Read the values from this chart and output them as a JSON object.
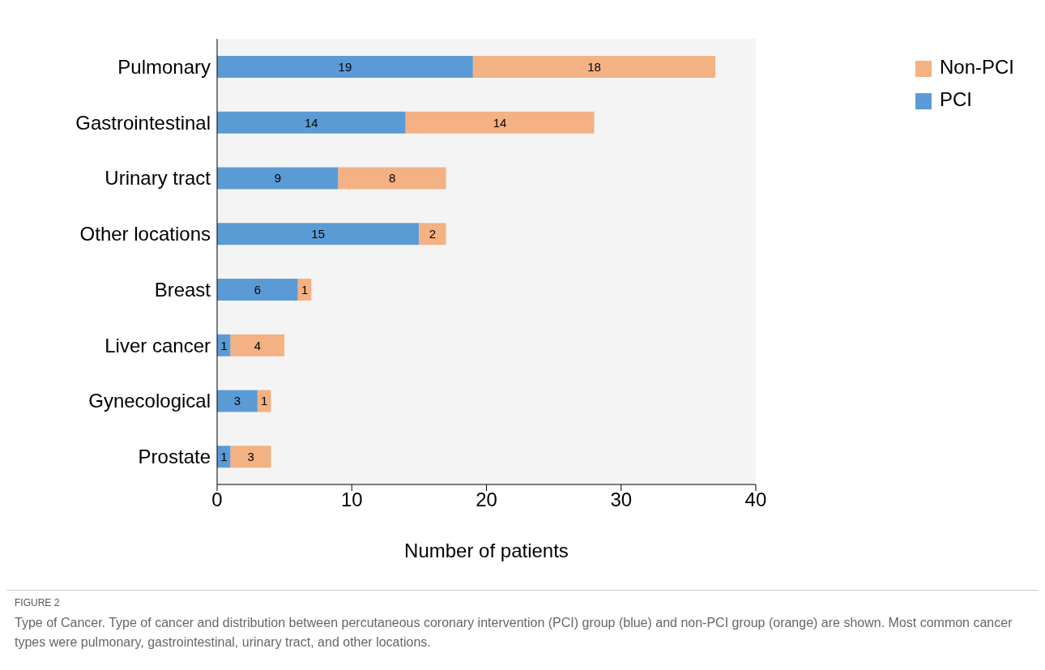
{
  "chart_data": {
    "type": "bar",
    "orientation": "horizontal",
    "stacked": true,
    "categories": [
      "Pulmonary",
      "Gastrointestinal",
      "Urinary tract",
      "Other locations",
      "Breast",
      "Liver cancer",
      "Gynecological",
      "Prostate"
    ],
    "series": [
      {
        "name": "PCI",
        "color": "#5b9bd5",
        "values": [
          19,
          14,
          9,
          15,
          6,
          1,
          3,
          1
        ]
      },
      {
        "name": "Non-PCI",
        "color": "#f4b183",
        "values": [
          18,
          14,
          8,
          2,
          1,
          4,
          1,
          3
        ]
      }
    ],
    "xlabel": "Number of patients",
    "xlim": [
      0,
      40
    ],
    "xticks": [
      0,
      10,
      20,
      30,
      40
    ],
    "data_labels": true,
    "grid": false,
    "legend": "top right",
    "annotations": [
      "FIGURE 2",
      "Type of Cancer. Type of cancer and distribution between percutaneous coronary intervention (PCI) group (blue) and non-PCI group (orange) are shown. Most common cancer types were pulmonary, gastrointestinal, urinary tract, and other locations."
    ]
  }
}
